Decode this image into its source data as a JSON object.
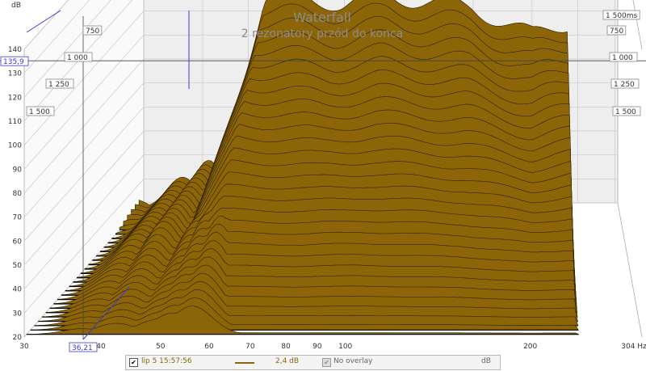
{
  "colors": {
    "fill": "#8b6508",
    "fill_edge": "#2e2000",
    "grid": "#c9c9c9",
    "back_plane": "#eeeeee",
    "cursor": "#3b3bd6"
  },
  "chart_data": {
    "type": "area",
    "chart_kind": "waterfall",
    "title": "Waterfall",
    "subtitle": "2 rezonatory przód do konca",
    "xlabel": "",
    "ylabel": "dB",
    "x_unit": "Hz",
    "x_scale": "log",
    "xlim": [
      30,
      304
    ],
    "ylim": [
      20,
      140
    ],
    "z_unit": "ms",
    "zlim": [
      0,
      1500
    ],
    "x_ticks": [
      30,
      40,
      50,
      60,
      70,
      80,
      90,
      100,
      200
    ],
    "x_tick_labels": [
      "30",
      "40",
      "50",
      "60",
      "70",
      "80",
      "90",
      "100",
      "200"
    ],
    "x_end_label": "304 Hz",
    "y_ticks": [
      20,
      30,
      40,
      50,
      60,
      70,
      80,
      90,
      100,
      110,
      120,
      130,
      140
    ],
    "y_tick_labels": [
      "20",
      "30",
      "40",
      "50",
      "60",
      "70",
      "80",
      "90",
      "100",
      "110",
      "120",
      "130",
      "140"
    ],
    "z_ticks_left": [
      "1 500",
      "1 250",
      "1 000",
      "750"
    ],
    "z_ticks_right": [
      "1 500ms",
      "750",
      "1 000",
      "1 250",
      "1 500"
    ],
    "cursor": {
      "x": 36.21,
      "x_label": "36,21",
      "y": 135.9,
      "y_label": "135,9"
    },
    "slices": 30,
    "front_slice_peaks": [
      {
        "freq": 37,
        "db": 33
      },
      {
        "freq": 42,
        "db": 40
      },
      {
        "freq": 49,
        "db": 42
      },
      {
        "freq": 52,
        "db": 47
      },
      {
        "freq": 56,
        "db": 51
      }
    ],
    "back_slice_profile_db": [
      {
        "freq": 55,
        "db": 113
      },
      {
        "freq": 63,
        "db": 112
      },
      {
        "freq": 80,
        "db": 110
      },
      {
        "freq": 100,
        "db": 113
      },
      {
        "freq": 150,
        "db": 108
      },
      {
        "freq": 200,
        "db": 96
      },
      {
        "freq": 304,
        "db": 109
      }
    ],
    "grid": true
  },
  "legend": {
    "trace_label": "lip 5 15:57:56",
    "trace_checked": true,
    "smoothing": "2,4 dB",
    "overlay_label": "No overlay",
    "unit": "dB"
  }
}
